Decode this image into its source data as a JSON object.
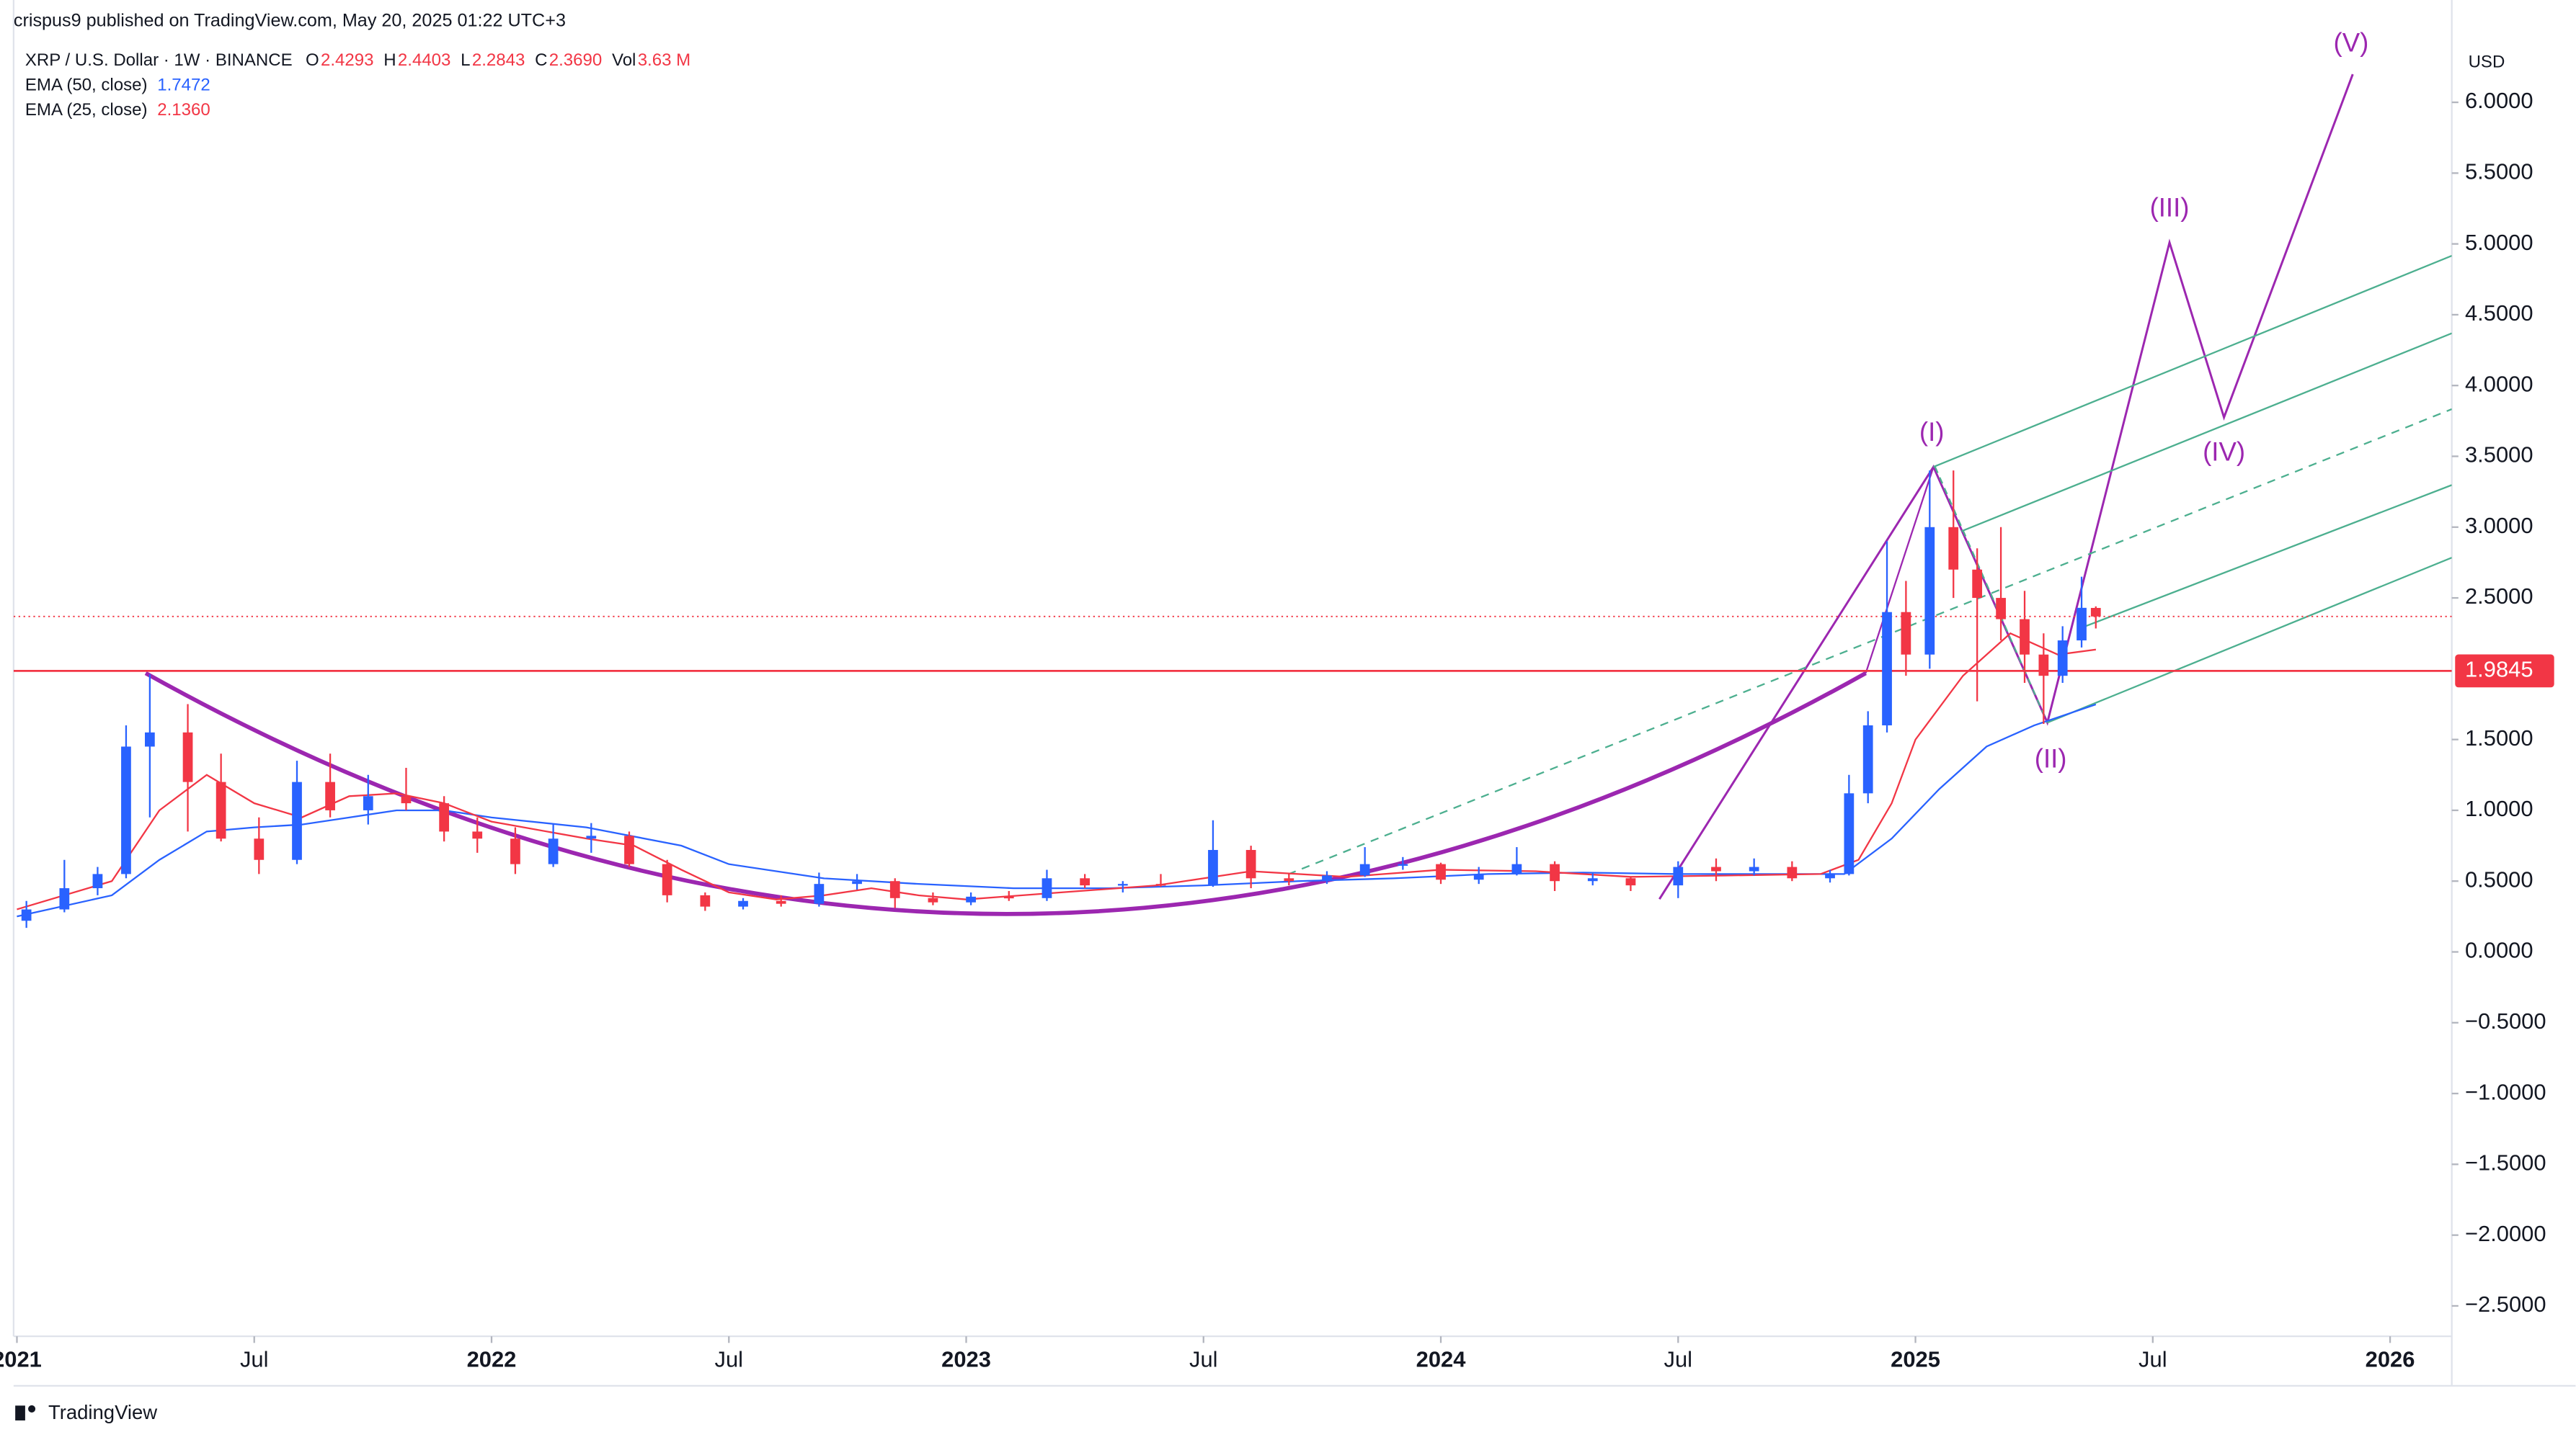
{
  "byline": "crispus9 published on TradingView.com, May 20, 2025 01:22 UTC+3",
  "brand": "TradingView",
  "chart_data": {
    "type": "candlestick",
    "title": "XRP / U.S. Dollar · 1W · BINANCE",
    "legend_ohlc": [
      {
        "key": "O",
        "value": "2.4293"
      },
      {
        "key": "H",
        "value": "2.4403"
      },
      {
        "key": "L",
        "value": "2.2843"
      },
      {
        "key": "C",
        "value": "2.3690"
      },
      {
        "key": "Vol",
        "value": "3.63 M"
      }
    ],
    "axis_unit": "USD",
    "up_color": "#2962ff",
    "down_color": "#f23645",
    "x": [
      2021.02,
      2021.1,
      2021.17,
      2021.23,
      2021.28,
      2021.36,
      2021.43,
      2021.51,
      2021.59,
      2021.66,
      2021.74,
      2021.82,
      2021.9,
      2021.97,
      2022.05,
      2022.13,
      2022.21,
      2022.29,
      2022.37,
      2022.45,
      2022.53,
      2022.61,
      2022.69,
      2022.77,
      2022.85,
      2022.93,
      2023.01,
      2023.09,
      2023.17,
      2023.25,
      2023.33,
      2023.41,
      2023.52,
      2023.6,
      2023.68,
      2023.76,
      2023.84,
      2023.92,
      2024.0,
      2024.08,
      2024.16,
      2024.24,
      2024.32,
      2024.4,
      2024.5,
      2024.58,
      2024.66,
      2024.74,
      2024.82,
      2024.86,
      2024.9,
      2024.94,
      2024.98,
      2025.03,
      2025.08,
      2025.13,
      2025.18,
      2025.23,
      2025.27,
      2025.31,
      2025.35,
      2025.38
    ],
    "open": [
      0.22,
      0.3,
      0.45,
      0.55,
      1.45,
      1.55,
      1.2,
      0.8,
      0.65,
      1.2,
      1.0,
      1.1,
      1.05,
      0.85,
      0.8,
      0.62,
      0.8,
      0.82,
      0.62,
      0.4,
      0.32,
      0.36,
      0.34,
      0.48,
      0.5,
      0.38,
      0.35,
      0.39,
      0.38,
      0.52,
      0.47,
      0.48,
      0.47,
      0.72,
      0.52,
      0.5,
      0.54,
      0.62,
      0.62,
      0.51,
      0.55,
      0.62,
      0.5,
      0.52,
      0.47,
      0.6,
      0.57,
      0.6,
      0.52,
      0.55,
      1.12,
      1.6,
      2.4,
      2.1,
      3.0,
      2.7,
      2.5,
      2.35,
      2.1,
      1.95,
      2.2,
      2.4293
    ],
    "high": [
      0.36,
      0.65,
      0.6,
      1.6,
      1.96,
      1.75,
      1.4,
      0.95,
      1.35,
      1.4,
      1.25,
      1.3,
      1.1,
      0.95,
      0.88,
      0.9,
      0.91,
      0.85,
      0.65,
      0.42,
      0.38,
      0.4,
      0.56,
      0.55,
      0.52,
      0.42,
      0.42,
      0.43,
      0.58,
      0.55,
      0.5,
      0.55,
      0.93,
      0.75,
      0.55,
      0.57,
      0.74,
      0.67,
      0.63,
      0.6,
      0.74,
      0.64,
      0.56,
      0.53,
      0.64,
      0.66,
      0.66,
      0.64,
      0.58,
      1.25,
      1.7,
      2.9,
      2.62,
      3.4,
      3.4,
      2.85,
      3.0,
      2.55,
      2.25,
      2.3,
      2.65,
      2.4403
    ],
    "low": [
      0.17,
      0.28,
      0.4,
      0.52,
      0.95,
      0.85,
      0.78,
      0.55,
      0.62,
      0.95,
      0.9,
      1.0,
      0.78,
      0.7,
      0.55,
      0.6,
      0.7,
      0.6,
      0.35,
      0.29,
      0.3,
      0.32,
      0.32,
      0.44,
      0.31,
      0.33,
      0.33,
      0.36,
      0.36,
      0.45,
      0.42,
      0.46,
      0.46,
      0.45,
      0.47,
      0.48,
      0.53,
      0.58,
      0.48,
      0.48,
      0.54,
      0.43,
      0.47,
      0.43,
      0.38,
      0.5,
      0.54,
      0.5,
      0.49,
      0.54,
      1.05,
      1.55,
      1.95,
      2.0,
      2.5,
      1.77,
      2.2,
      1.9,
      1.61,
      1.9,
      2.15,
      2.2843
    ],
    "close": [
      0.3,
      0.45,
      0.55,
      1.45,
      1.55,
      1.2,
      0.8,
      0.65,
      1.2,
      1.0,
      1.1,
      1.05,
      0.85,
      0.8,
      0.62,
      0.8,
      0.82,
      0.62,
      0.4,
      0.32,
      0.36,
      0.34,
      0.48,
      0.5,
      0.38,
      0.35,
      0.39,
      0.38,
      0.52,
      0.47,
      0.48,
      0.47,
      0.72,
      0.52,
      0.5,
      0.54,
      0.62,
      0.62,
      0.51,
      0.55,
      0.62,
      0.5,
      0.52,
      0.47,
      0.6,
      0.57,
      0.6,
      0.52,
      0.55,
      1.12,
      1.6,
      2.4,
      2.1,
      3.0,
      2.7,
      2.5,
      2.35,
      2.1,
      1.95,
      2.2,
      2.43,
      2.369
    ],
    "lines": [
      {
        "name": "EMA (50, close)",
        "value_label": "1.7472",
        "color": "#2962ff",
        "x": [
          2021.0,
          2021.2,
          2021.3,
          2021.4,
          2021.5,
          2021.6,
          2021.7,
          2021.8,
          2021.9,
          2022.0,
          2022.2,
          2022.4,
          2022.5,
          2022.7,
          2022.9,
          2023.1,
          2023.3,
          2023.5,
          2023.7,
          2023.9,
          2024.1,
          2024.3,
          2024.5,
          2024.7,
          2024.85,
          2024.95,
          2025.05,
          2025.15,
          2025.25,
          2025.38
        ],
        "values": [
          0.25,
          0.4,
          0.65,
          0.85,
          0.88,
          0.9,
          0.95,
          1.0,
          1.0,
          0.95,
          0.88,
          0.75,
          0.62,
          0.52,
          0.48,
          0.45,
          0.45,
          0.47,
          0.5,
          0.52,
          0.55,
          0.56,
          0.55,
          0.55,
          0.55,
          0.8,
          1.15,
          1.45,
          1.6,
          1.7472
        ]
      },
      {
        "name": "EMA (25, close)",
        "value_label": "2.1360",
        "color": "#f23645",
        "x": [
          2021.0,
          2021.2,
          2021.3,
          2021.4,
          2021.5,
          2021.6,
          2021.7,
          2021.8,
          2021.9,
          2022.0,
          2022.2,
          2022.3,
          2022.4,
          2022.5,
          2022.6,
          2022.7,
          2022.8,
          2022.9,
          2023.0,
          2023.2,
          2023.4,
          2023.5,
          2023.6,
          2023.8,
          2024.0,
          2024.2,
          2024.4,
          2024.6,
          2024.8,
          2024.88,
          2024.95,
          2025.0,
          2025.1,
          2025.2,
          2025.3,
          2025.38
        ],
        "values": [
          0.3,
          0.5,
          1.0,
          1.25,
          1.05,
          0.95,
          1.1,
          1.12,
          1.05,
          0.92,
          0.8,
          0.75,
          0.58,
          0.42,
          0.37,
          0.4,
          0.45,
          0.4,
          0.37,
          0.42,
          0.47,
          0.52,
          0.57,
          0.53,
          0.58,
          0.57,
          0.53,
          0.54,
          0.55,
          0.65,
          1.05,
          1.5,
          1.95,
          2.25,
          2.1,
          2.136
        ]
      }
    ],
    "hline": {
      "value": 1.9845,
      "color": "#f23645"
    },
    "annotations": [
      "(I)",
      "(II)",
      "(III)",
      "(IV)",
      "(V)"
    ],
    "xlim": [
      2020.993,
      2026.13
    ],
    "ylim": [
      -2.7147,
      6.7226
    ],
    "xticks": [
      2021,
      {
        "value": 2021.5,
        "label": "Jul"
      },
      2022,
      {
        "value": 2022.5,
        "label": "Jul"
      },
      2023,
      {
        "value": 2023.5,
        "label": "Jul"
      },
      2024,
      {
        "value": 2024.5,
        "label": "Jul"
      },
      2025,
      {
        "value": 2025.5,
        "label": "Jul"
      },
      2026
    ],
    "yticks": [
      {
        "value": 6,
        "label": "6.0000"
      },
      {
        "value": 5.5,
        "label": "5.5000"
      },
      {
        "value": 5,
        "label": "5.0000"
      },
      {
        "value": 4.5,
        "label": "4.5000"
      },
      {
        "value": 4,
        "label": "4.0000"
      },
      {
        "value": 3.5,
        "label": "3.5000"
      },
      {
        "value": 3,
        "label": "3.0000"
      },
      {
        "value": 2.5,
        "label": "2.5000"
      },
      {
        "value": 1.5,
        "label": "1.5000"
      },
      {
        "value": 1,
        "label": "1.0000"
      },
      {
        "value": 0.5,
        "label": "0.5000"
      },
      {
        "value": 0,
        "label": "0.0000"
      },
      {
        "value": -0.5,
        "label": "−0.5000"
      },
      {
        "value": -1,
        "label": "−1.0000"
      },
      {
        "value": -1.5,
        "label": "−1.5000"
      },
      {
        "value": -2,
        "label": "−2.0000"
      },
      {
        "value": -2.5,
        "label": "−2.5000"
      }
    ]
  }
}
